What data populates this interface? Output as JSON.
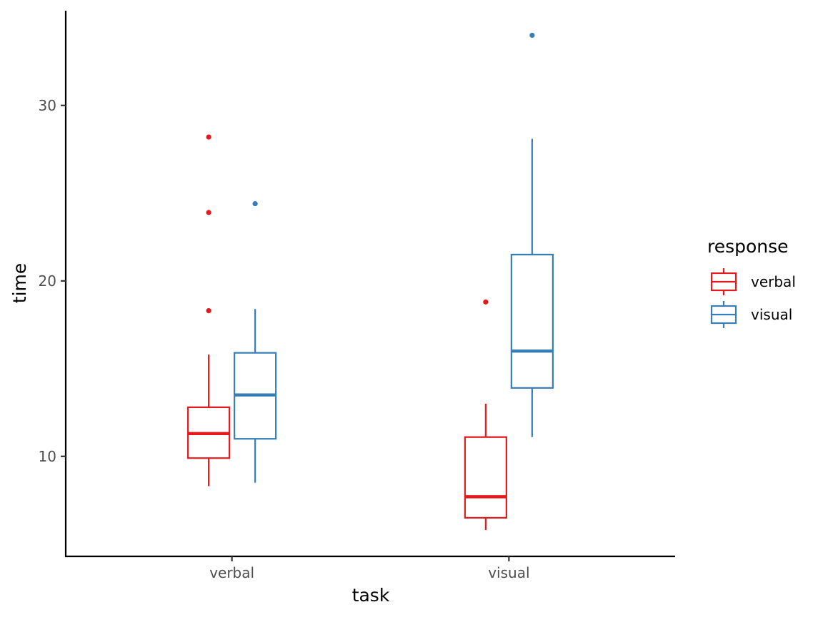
{
  "chart_data": {
    "type": "boxplot",
    "xlabel": "task",
    "ylabel": "time",
    "categories": [
      "verbal",
      "visual"
    ],
    "yticks": [
      10,
      20,
      30
    ],
    "ylim": [
      4.3,
      35.4
    ],
    "grid": false,
    "legend": {
      "title": "response",
      "position": "right",
      "entries": [
        "verbal",
        "visual"
      ]
    },
    "series": [
      {
        "name": "verbal",
        "color": "#e41a1c",
        "boxes": [
          {
            "category": "verbal",
            "whisker_low": 8.3,
            "q1": 9.9,
            "median": 11.3,
            "q3": 12.8,
            "whisker_high": 15.8,
            "outliers": [
              18.3,
              23.9,
              28.2
            ]
          },
          {
            "category": "visual",
            "whisker_low": 5.8,
            "q1": 6.5,
            "median": 7.7,
            "q3": 11.1,
            "whisker_high": 13.0,
            "outliers": [
              18.8
            ]
          }
        ]
      },
      {
        "name": "visual",
        "color": "#377eb8",
        "boxes": [
          {
            "category": "verbal",
            "whisker_low": 8.5,
            "q1": 11.0,
            "median": 13.5,
            "q3": 15.9,
            "whisker_high": 18.4,
            "outliers": [
              24.4
            ]
          },
          {
            "category": "visual",
            "whisker_low": 11.1,
            "q1": 13.9,
            "median": 16.0,
            "q3": 21.5,
            "whisker_high": 28.1,
            "outliers": [
              34.0
            ]
          }
        ]
      }
    ]
  }
}
